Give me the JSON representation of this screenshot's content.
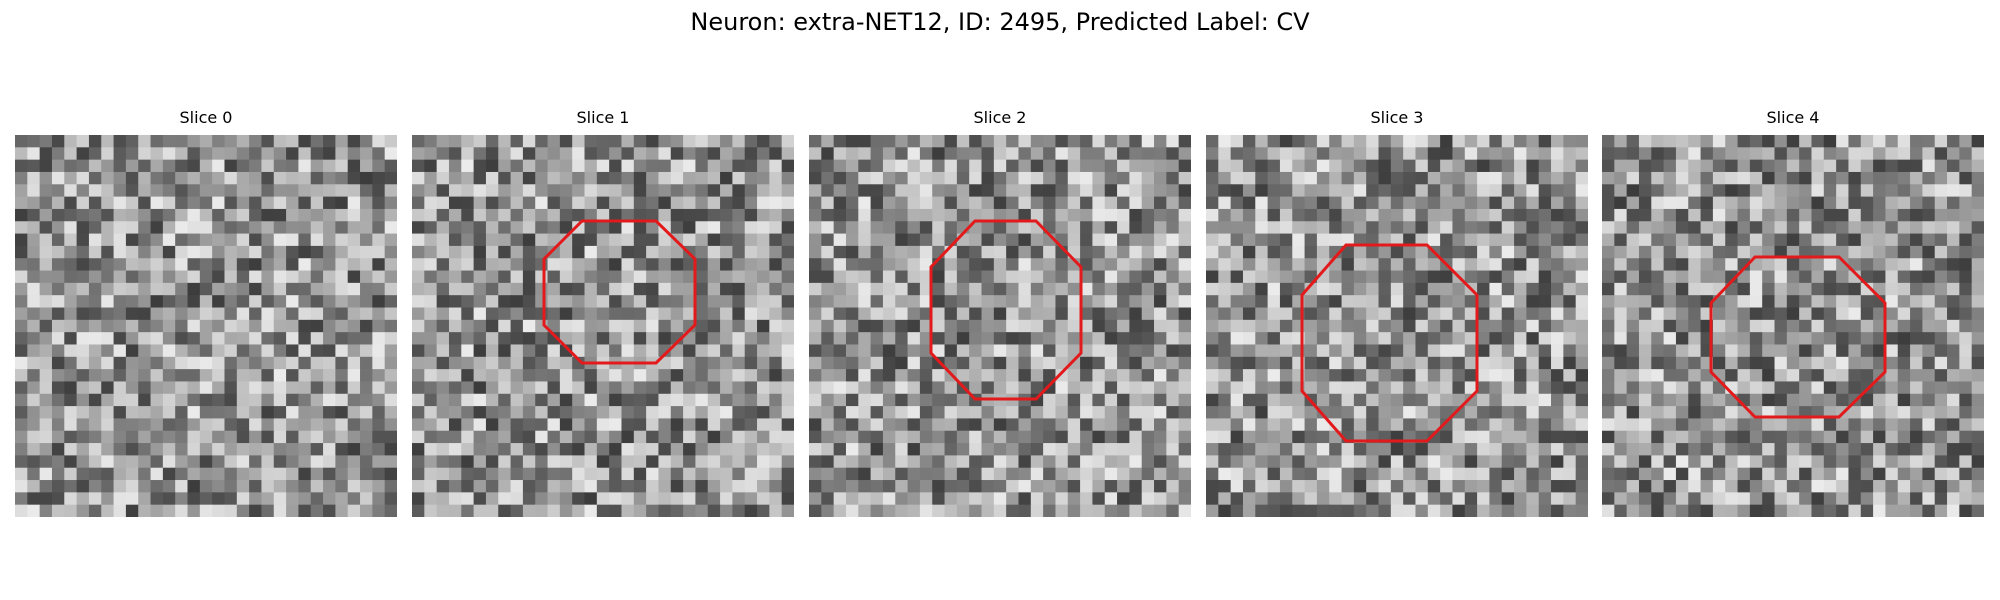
{
  "figure": {
    "title": "Neuron: extra-NET12, ID: 2495, Predicted Label: CV"
  },
  "panels": [
    {
      "title": "Slice 0",
      "has_outline": false
    },
    {
      "title": "Slice 1",
      "has_outline": true
    },
    {
      "title": "Slice 2",
      "has_outline": true
    },
    {
      "title": "Slice 3",
      "has_outline": true
    },
    {
      "title": "Slice 4",
      "has_outline": true
    }
  ],
  "colors": {
    "outline": "#e31a1c",
    "background": "#ffffff"
  }
}
